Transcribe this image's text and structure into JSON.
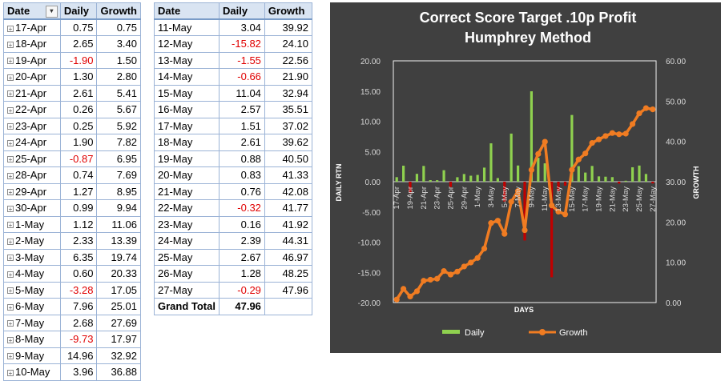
{
  "table1": {
    "headers": [
      "Date",
      "Daily",
      "Growth"
    ],
    "rows": [
      [
        "17-Apr",
        "0.75",
        "0.75"
      ],
      [
        "18-Apr",
        "2.65",
        "3.40"
      ],
      [
        "19-Apr",
        "-1.90",
        "1.50"
      ],
      [
        "20-Apr",
        "1.30",
        "2.80"
      ],
      [
        "21-Apr",
        "2.61",
        "5.41"
      ],
      [
        "22-Apr",
        "0.26",
        "5.67"
      ],
      [
        "23-Apr",
        "0.25",
        "5.92"
      ],
      [
        "24-Apr",
        "1.90",
        "7.82"
      ],
      [
        "25-Apr",
        "-0.87",
        "6.95"
      ],
      [
        "28-Apr",
        "0.74",
        "7.69"
      ],
      [
        "29-Apr",
        "1.27",
        "8.95"
      ],
      [
        "30-Apr",
        "0.99",
        "9.94"
      ],
      [
        "1-May",
        "1.12",
        "11.06"
      ],
      [
        "2-May",
        "2.33",
        "13.39"
      ],
      [
        "3-May",
        "6.35",
        "19.74"
      ],
      [
        "4-May",
        "0.60",
        "20.33"
      ],
      [
        "5-May",
        "-3.28",
        "17.05"
      ],
      [
        "6-May",
        "7.96",
        "25.01"
      ],
      [
        "7-May",
        "2.68",
        "27.69"
      ],
      [
        "8-May",
        "-9.73",
        "17.97"
      ],
      [
        "9-May",
        "14.96",
        "32.92"
      ],
      [
        "10-May",
        "3.96",
        "36.88"
      ]
    ]
  },
  "table2": {
    "headers": [
      "Date",
      "Daily",
      "Growth"
    ],
    "rows": [
      [
        "11-May",
        "3.04",
        "39.92"
      ],
      [
        "12-May",
        "-15.82",
        "24.10"
      ],
      [
        "13-May",
        "-1.55",
        "22.56"
      ],
      [
        "14-May",
        "-0.66",
        "21.90"
      ],
      [
        "15-May",
        "11.04",
        "32.94"
      ],
      [
        "16-May",
        "2.57",
        "35.51"
      ],
      [
        "17-May",
        "1.51",
        "37.02"
      ],
      [
        "18-May",
        "2.61",
        "39.62"
      ],
      [
        "19-May",
        "0.88",
        "40.50"
      ],
      [
        "20-May",
        "0.83",
        "41.33"
      ],
      [
        "21-May",
        "0.76",
        "42.08"
      ],
      [
        "22-May",
        "-0.32",
        "41.77"
      ],
      [
        "23-May",
        "0.16",
        "41.92"
      ],
      [
        "24-May",
        "2.39",
        "44.31"
      ],
      [
        "25-May",
        "2.67",
        "46.97"
      ],
      [
        "26-May",
        "1.28",
        "48.25"
      ],
      [
        "27-May",
        "-0.29",
        "47.96"
      ]
    ],
    "total_label": "Grand Total",
    "total_value": "47.96"
  },
  "colors": {
    "neg_text": "#e00000",
    "header_bg": "#d9e4f2",
    "chart_bg": "#404040",
    "daily_pos": "#8fd14f",
    "daily_neg": "#c00000",
    "growth": "#f07c22"
  },
  "chart_data": {
    "type": "bar",
    "title": "Correct Score Target .10p Profit",
    "subtitle": "Humphrey Method",
    "xlabel": "DAYS",
    "ylabel": "DAILY RTN",
    "y2label": "GROWTH",
    "ylim": [
      -20,
      20
    ],
    "y2lim": [
      0,
      60
    ],
    "yticks": [
      "20.00",
      "15.00",
      "10.00",
      "5.00",
      "0.00",
      "-5.00",
      "-10.00",
      "-15.00",
      "-20.00"
    ],
    "y2ticks": [
      "60.00",
      "50.00",
      "40.00",
      "30.00",
      "20.00",
      "10.00",
      "0.00"
    ],
    "xticks": [
      "17-Apr",
      "19-Apr",
      "21-Apr",
      "23-Apr",
      "25-Apr",
      "29-Apr",
      "1-May",
      "3-May",
      "5-May",
      "7-May",
      "9-May",
      "11-May",
      "13-May",
      "15-May",
      "17-May",
      "19-May",
      "21-May",
      "23-May",
      "25-May",
      "27-May"
    ],
    "categories": [
      "17-Apr",
      "18-Apr",
      "19-Apr",
      "20-Apr",
      "21-Apr",
      "22-Apr",
      "23-Apr",
      "24-Apr",
      "25-Apr",
      "28-Apr",
      "29-Apr",
      "30-Apr",
      "1-May",
      "2-May",
      "3-May",
      "4-May",
      "5-May",
      "6-May",
      "7-May",
      "8-May",
      "9-May",
      "10-May",
      "11-May",
      "12-May",
      "13-May",
      "14-May",
      "15-May",
      "16-May",
      "17-May",
      "18-May",
      "19-May",
      "20-May",
      "21-May",
      "22-May",
      "23-May",
      "24-May",
      "25-May",
      "26-May",
      "27-May"
    ],
    "series": [
      {
        "name": "Daily",
        "type": "bar",
        "axis": "left",
        "values": [
          0.75,
          2.65,
          -1.9,
          1.3,
          2.61,
          0.26,
          0.25,
          1.9,
          -0.87,
          0.74,
          1.27,
          0.99,
          1.12,
          2.33,
          6.35,
          0.6,
          -3.28,
          7.96,
          2.68,
          -9.73,
          14.96,
          3.96,
          3.04,
          -15.82,
          -1.55,
          -0.66,
          11.04,
          2.57,
          1.51,
          2.61,
          0.88,
          0.83,
          0.76,
          -0.32,
          0.16,
          2.39,
          2.67,
          1.28,
          -0.29
        ]
      },
      {
        "name": "Growth",
        "type": "line",
        "axis": "right",
        "values": [
          0.75,
          3.4,
          1.5,
          2.8,
          5.41,
          5.67,
          5.92,
          7.82,
          6.95,
          7.69,
          8.95,
          9.94,
          11.06,
          13.39,
          19.74,
          20.33,
          17.05,
          25.01,
          27.69,
          17.97,
          32.92,
          36.88,
          39.92,
          24.1,
          22.56,
          21.9,
          32.94,
          35.51,
          37.02,
          39.62,
          40.5,
          41.33,
          42.08,
          41.77,
          41.92,
          44.31,
          46.97,
          48.25,
          47.96
        ]
      }
    ],
    "legend": "bottom",
    "grid": false
  }
}
